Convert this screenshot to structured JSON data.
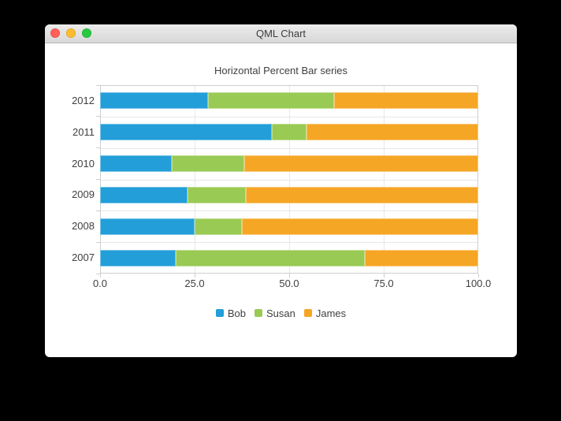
{
  "window": {
    "title": "QML Chart",
    "traffic_lights": [
      {
        "name": "close",
        "color": "#ff5f57"
      },
      {
        "name": "minimize",
        "color": "#febc2e"
      },
      {
        "name": "zoom",
        "color": "#28c840"
      }
    ]
  },
  "chart_data": {
    "type": "bar",
    "orientation": "horizontal",
    "stacking": "percent",
    "title": "Horizontal Percent Bar series",
    "categories": [
      "2012",
      "2011",
      "2010",
      "2009",
      "2008",
      "2007"
    ],
    "series": [
      {
        "name": "Bob",
        "color": "#239ed9",
        "values": [
          6,
          5,
          4,
          3,
          2,
          2
        ]
      },
      {
        "name": "Susan",
        "color": "#99ca53",
        "values": [
          7,
          1,
          4,
          2,
          1,
          5
        ]
      },
      {
        "name": "James",
        "color": "#f6a625",
        "values": [
          8,
          5,
          13,
          8,
          5,
          3
        ]
      }
    ],
    "x_axis": {
      "ticks": [
        "0.0",
        "25.0",
        "50.0",
        "75.0",
        "100.0"
      ],
      "range": [
        0,
        100
      ],
      "grid": true
    },
    "legend": {
      "position": "bottom",
      "entries": [
        "Bob",
        "Susan",
        "James"
      ]
    },
    "text_color": "#404044",
    "grid_color": "#e7e7e7",
    "axis_color": "#cfcfcf"
  }
}
